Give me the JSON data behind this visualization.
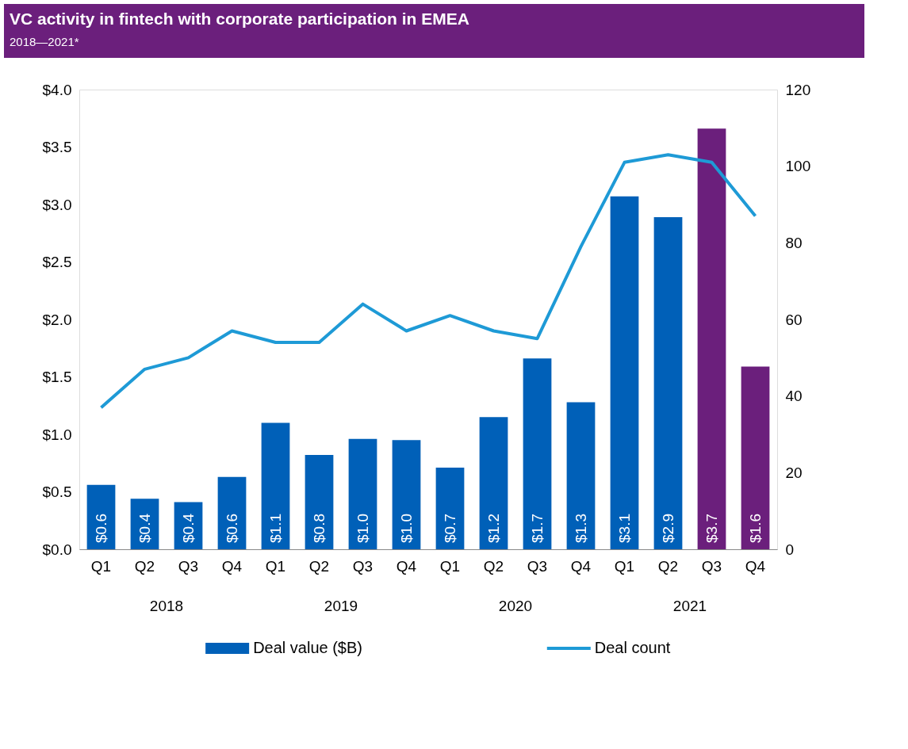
{
  "chart_data": {
    "type": "bar",
    "title": "VC activity in fintech with corporate participation in EMEA",
    "subtitle": "2018—2021*",
    "categories": [
      "Q1",
      "Q2",
      "Q3",
      "Q4",
      "Q1",
      "Q2",
      "Q3",
      "Q4",
      "Q1",
      "Q2",
      "Q3",
      "Q4",
      "Q1",
      "Q2",
      "Q3",
      "Q4"
    ],
    "annotations": [
      "2018",
      "2019",
      "2020",
      "2021"
    ],
    "series": [
      {
        "name": "Deal value ($B)",
        "color": "#0060b8",
        "colors": [
          "#0060b8",
          "#0060b8",
          "#0060b8",
          "#0060b8",
          "#0060b8",
          "#0060b8",
          "#0060b8",
          "#0060b8",
          "#0060b8",
          "#0060b8",
          "#0060b8",
          "#0060b8",
          "#0060b8",
          "#0060b8",
          "#6b1f7c",
          "#6b1f7c"
        ],
        "values": [
          0.56,
          0.44,
          0.41,
          0.63,
          1.1,
          0.82,
          0.96,
          0.95,
          0.71,
          1.15,
          1.66,
          1.28,
          3.07,
          2.89,
          3.66,
          1.59
        ],
        "value_labels": [
          "$0.6",
          "$0.4",
          "$0.4",
          "$0.6",
          "$1.1",
          "$0.8",
          "$1.0",
          "$1.0",
          "$0.7",
          "$1.2",
          "$1.7",
          "$1.3",
          "$3.1",
          "$2.9",
          "$3.7",
          "$1.6"
        ]
      },
      {
        "name": "Deal count",
        "type": "line",
        "axis": "y2",
        "color": "#1e9ad6",
        "values": [
          37,
          47,
          50,
          57,
          54,
          54,
          64,
          57,
          61,
          57,
          55,
          79,
          101,
          103,
          101,
          87
        ]
      }
    ],
    "ylim": [
      0,
      4
    ],
    "yticks": [
      {
        "value": 0,
        "label": "$0.0"
      },
      {
        "value": 0.5,
        "label": "$0.5"
      },
      {
        "value": 1,
        "label": "$1.0"
      },
      {
        "value": 1.5,
        "label": "$1.5"
      },
      {
        "value": 2,
        "label": "$2.0"
      },
      {
        "value": 2.5,
        "label": "$2.5"
      },
      {
        "value": 3,
        "label": "$3.0"
      },
      {
        "value": 3.5,
        "label": "$3.5"
      },
      {
        "value": 4,
        "label": "$4.0"
      }
    ],
    "y2lim": [
      0,
      120
    ],
    "y2ticks": [
      0,
      20,
      40,
      60,
      80,
      100,
      120
    ],
    "grid": false,
    "legend": "bottom",
    "marker": "none",
    "line_style": "solid"
  }
}
